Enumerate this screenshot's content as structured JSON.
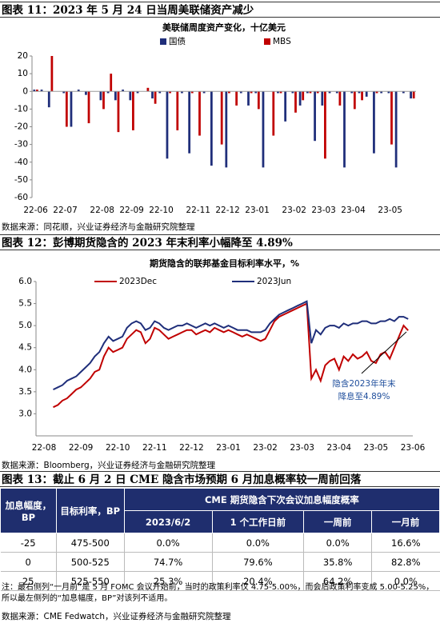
{
  "captions": [
    "图表 11：2023 年 5 月 24 日当周美联储资产减少",
    "图表 12：彭博期货隐含的 2023 年末利率小幅降至 4.89%",
    "图表 13：截止 6 月 2 日 CME 隐含市场预期 6 月加息概率较一周前回落"
  ],
  "sources": [
    "数据来源：同花顺，兴业证券经济与金融研究院整理",
    "数据来源：Bloomberg，兴业证券经济与金融研究院整理",
    "数据来源：CME Fedwatch，兴业证券经济与金融研究院整理"
  ],
  "chart_data": [
    {
      "type": "bar",
      "title": "美联储周度资产变化，十亿美元",
      "categories": [
        "22-06",
        null,
        null,
        null,
        "22-07",
        null,
        null,
        null,
        null,
        "22-08",
        null,
        null,
        null,
        "22-09",
        null,
        null,
        null,
        "22-10",
        null,
        null,
        null,
        null,
        "22-11",
        null,
        null,
        null,
        "22-12",
        null,
        null,
        null,
        "23-01",
        null,
        null,
        null,
        null,
        "23-02",
        null,
        null,
        null,
        "23-03",
        null,
        null,
        null,
        "23-04",
        null,
        null,
        null,
        null,
        "23-05",
        null,
        null,
        null
      ],
      "series": [
        {
          "name": "国债",
          "color": "#1f2e7a",
          "values": [
            1,
            1,
            -9,
            0,
            -1,
            -20,
            1,
            -2,
            0,
            -5,
            -1,
            -5,
            1,
            -5,
            -1,
            0,
            -4,
            -1,
            -38,
            0,
            -1,
            -35,
            0,
            -1,
            -42,
            0,
            -43,
            0,
            -1,
            -8,
            -1,
            -43,
            0,
            -1,
            -17,
            -1,
            -8,
            -1,
            -28,
            -8,
            -1,
            -1,
            -43,
            -1,
            -1,
            -3,
            -35,
            -1,
            -1,
            -43,
            -1,
            -4
          ]
        },
        {
          "name": "MBS",
          "color": "#c00000",
          "values": [
            1,
            0,
            20,
            0,
            -20,
            0,
            0,
            -18,
            0,
            -10,
            10,
            -23,
            0,
            -22,
            0,
            2,
            -7,
            0,
            -1,
            -22,
            0,
            -1,
            -25,
            0,
            0,
            -30,
            -1,
            -8,
            0,
            -1,
            -10,
            0,
            -25,
            -1,
            0,
            -12,
            -5,
            -1,
            -1,
            -38,
            0,
            -8,
            0,
            -10,
            -5,
            0,
            -1,
            0,
            -30,
            0,
            0,
            -4
          ]
        }
      ],
      "ylim": [
        -60,
        20
      ],
      "yticks": [
        20,
        10,
        0,
        -10,
        -20,
        -30,
        -40,
        -50,
        -60
      ],
      "grid": false,
      "legend": "top"
    },
    {
      "type": "line",
      "title": "期货隐含的联邦基金目标利率水平，%",
      "categories": [
        "22-08",
        null,
        null,
        null,
        null,
        null,
        null,
        null,
        "22-09",
        null,
        null,
        null,
        null,
        null,
        null,
        null,
        "22-10",
        null,
        null,
        null,
        null,
        null,
        null,
        null,
        "22-11",
        null,
        null,
        null,
        null,
        null,
        null,
        null,
        "22-12",
        null,
        null,
        null,
        null,
        null,
        null,
        null,
        "23-01",
        null,
        null,
        null,
        null,
        null,
        null,
        null,
        "23-02",
        null,
        null,
        null,
        null,
        null,
        null,
        null,
        "23-03",
        null,
        null,
        null,
        null,
        null,
        null,
        null,
        "23-04",
        null,
        null,
        null,
        null,
        null,
        null,
        null,
        "23-05",
        null,
        null,
        null,
        null,
        null,
        null,
        null,
        "23-06"
      ],
      "series": [
        {
          "name": "2023Dec",
          "color": "#c00000",
          "values": [
            null,
            null,
            3.15,
            3.2,
            3.3,
            3.35,
            3.45,
            3.55,
            3.6,
            3.7,
            3.8,
            3.95,
            4.0,
            4.3,
            4.5,
            4.4,
            4.45,
            4.5,
            4.7,
            4.8,
            4.9,
            4.85,
            4.6,
            4.7,
            4.95,
            4.9,
            4.8,
            4.7,
            4.75,
            4.8,
            4.85,
            4.9,
            4.9,
            4.8,
            4.85,
            4.9,
            4.85,
            4.95,
            4.9,
            4.85,
            4.9,
            4.85,
            4.8,
            4.75,
            4.8,
            4.75,
            4.7,
            4.65,
            4.7,
            4.9,
            5.1,
            5.2,
            5.25,
            5.3,
            5.35,
            5.4,
            5.45,
            5.5,
            3.8,
            4.0,
            3.75,
            4.1,
            4.2,
            4.25,
            4.0,
            4.3,
            4.2,
            4.35,
            4.25,
            4.3,
            4.4,
            4.2,
            4.15,
            4.35,
            4.4,
            4.25,
            4.5,
            4.75,
            5.0,
            4.89,
            null
          ]
        },
        {
          "name": "2023Jun",
          "color": "#1f2e7a",
          "values": [
            null,
            null,
            3.55,
            3.6,
            3.65,
            3.75,
            3.8,
            3.85,
            3.95,
            4.05,
            4.15,
            4.3,
            4.4,
            4.6,
            4.75,
            4.65,
            4.7,
            4.75,
            4.95,
            5.05,
            5.1,
            5.05,
            4.9,
            4.95,
            5.1,
            5.05,
            4.95,
            4.9,
            4.95,
            5.0,
            5.0,
            5.05,
            5.0,
            4.95,
            5.0,
            5.05,
            5.0,
            5.05,
            5.0,
            4.95,
            5.0,
            4.95,
            4.9,
            4.9,
            4.9,
            4.85,
            4.85,
            4.85,
            4.9,
            5.05,
            5.15,
            5.25,
            5.3,
            5.35,
            5.4,
            5.45,
            5.5,
            5.55,
            4.6,
            4.9,
            4.8,
            4.95,
            5.0,
            5.0,
            4.95,
            5.05,
            5.0,
            5.05,
            5.05,
            5.1,
            5.1,
            5.05,
            5.05,
            5.1,
            5.1,
            5.15,
            5.1,
            5.2,
            5.2,
            5.15,
            null
          ]
        }
      ],
      "ylim": [
        2.5,
        6.0
      ],
      "yticks": [
        {
          "value": 3,
          "label": "3.0"
        },
        3.5,
        {
          "value": 4,
          "label": "4.0"
        },
        4.5,
        {
          "value": 5,
          "label": "5.0"
        },
        5.5,
        {
          "value": 6,
          "label": "6.0"
        }
      ],
      "grid": false,
      "legend": "top",
      "annotations": [
        "隐含2023年年末",
        "降息至4.89%"
      ]
    }
  ],
  "table": {
    "header": [
      "加息幅度，BP",
      "目标利率，BP",
      "CME 期货隐含下次会议加息幅度概率"
    ],
    "subheader": [
      "2023/6/2",
      "1 个工作日前",
      "一周前",
      "一月前"
    ],
    "rows": [
      [
        "-25",
        "475-500",
        "0.0%",
        "0.0%",
        "0.0%",
        "16.6%"
      ],
      [
        "0",
        "500-525",
        "74.7%",
        "79.6%",
        "35.8%",
        "82.8%"
      ],
      [
        "25",
        "525-550",
        "25.3%",
        "20.4%",
        "64.2%",
        "0.0%"
      ]
    ]
  },
  "note": "注：最右侧列“一月前”是 5 月 FOMC 会议开始前，当时的政策利率仅 4.75-5.00%，而会后政策利率变成 5.00-5.25%，所以最左侧列的“加息幅度，BP”对该列不适用。"
}
